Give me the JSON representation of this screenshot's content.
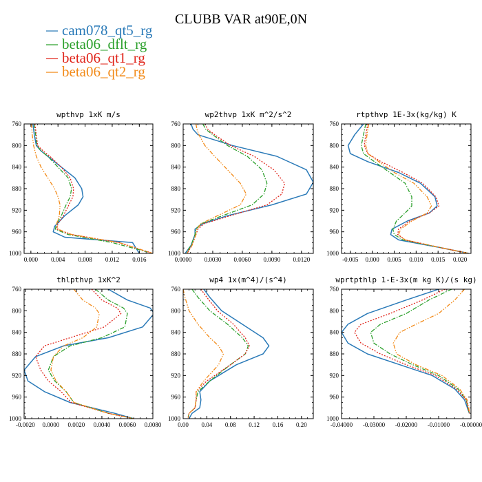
{
  "figure_title": "CLUBB VAR at90E,0N",
  "legend": [
    {
      "label": "cam078_qt5_rg",
      "color": "#2a7ab8",
      "dash": "solid"
    },
    {
      "label": "beta06_dflt_rg",
      "color": "#2ca02c",
      "dash": "dashdot"
    },
    {
      "label": "beta06_qt1_rg",
      "color": "#e0251b",
      "dash": "dot"
    },
    {
      "label": "beta06_qt2_rg",
      "color": "#f28a18",
      "dash": "dashdotdot"
    }
  ],
  "chart_data": [
    {
      "type": "line",
      "title": "wpthvp  1xK m/s",
      "xlim": [
        -0.001,
        0.018
      ],
      "ylim": [
        760,
        1000
      ],
      "y_inverted": true,
      "xticks": [
        0.0,
        0.004,
        0.008,
        0.012,
        0.016
      ],
      "xtick_labels": [
        "0.000",
        "0.004",
        "0.008",
        "0.012",
        "0.016"
      ],
      "yticks": [
        760,
        800,
        840,
        880,
        920,
        960,
        1000
      ],
      "series": [
        {
          "name": "cam078_qt5_rg",
          "x": [
            0.0003,
            0.0005,
            0.0008,
            0.0015,
            0.0025,
            0.0045,
            0.0065,
            0.0075,
            0.0077,
            0.007,
            0.005,
            0.0035,
            0.0033,
            0.005,
            0.015,
            0.016
          ],
          "y": [
            760,
            780,
            800,
            810,
            820,
            840,
            860,
            880,
            895,
            910,
            930,
            950,
            960,
            970,
            980,
            1000
          ]
        },
        {
          "name": "beta06_dflt_rg",
          "x": [
            0.0005,
            0.0007,
            0.0009,
            0.0015,
            0.0025,
            0.004,
            0.0055,
            0.006,
            0.0058,
            0.0052,
            0.0045,
            0.0038,
            0.0036,
            0.0055,
            0.012,
            0.018
          ],
          "y": [
            760,
            780,
            800,
            810,
            820,
            840,
            860,
            880,
            895,
            910,
            930,
            945,
            955,
            965,
            980,
            1000
          ]
        },
        {
          "name": "beta06_qt1_rg",
          "x": [
            0.0006,
            0.0008,
            0.001,
            0.0018,
            0.0028,
            0.0045,
            0.0058,
            0.0063,
            0.0062,
            0.0056,
            0.0048,
            0.004,
            0.0038,
            0.006,
            0.013,
            0.018
          ],
          "y": [
            760,
            780,
            800,
            810,
            820,
            840,
            860,
            880,
            895,
            910,
            930,
            945,
            955,
            965,
            980,
            1000
          ]
        },
        {
          "name": "beta06_qt2_rg",
          "x": [
            0.0001,
            0.0002,
            0.0004,
            0.0006,
            0.0008,
            0.0015,
            0.0025,
            0.0035,
            0.004,
            0.0043,
            0.0042,
            0.0038,
            0.004,
            0.006,
            0.013,
            0.018
          ],
          "y": [
            760,
            780,
            800,
            810,
            820,
            840,
            860,
            880,
            895,
            910,
            930,
            945,
            955,
            965,
            980,
            1000
          ]
        }
      ]
    },
    {
      "type": "line",
      "title": "wp2thvp  1xK m^2/s^2",
      "xlim": [
        0.0,
        0.0132
      ],
      "ylim": [
        760,
        1000
      ],
      "y_inverted": true,
      "xticks": [
        0.0,
        0.003,
        0.006,
        0.009,
        0.012
      ],
      "xtick_labels": [
        "0.0000",
        "0.0030",
        "0.0060",
        "0.0090",
        "0.0120"
      ],
      "yticks": [
        760,
        800,
        840,
        880,
        920,
        960,
        1000
      ],
      "series": [
        {
          "name": "cam078_qt5_rg",
          "x": [
            0.0008,
            0.001,
            0.0015,
            0.005,
            0.0095,
            0.0125,
            0.0132,
            0.0125,
            0.009,
            0.0045,
            0.002,
            0.0012,
            0.0012,
            0.0008,
            0.0002
          ],
          "y": [
            760,
            770,
            780,
            800,
            820,
            845,
            868,
            890,
            910,
            930,
            945,
            955,
            965,
            985,
            1000
          ]
        },
        {
          "name": "beta06_dflt_rg",
          "x": [
            0.002,
            0.0023,
            0.003,
            0.0045,
            0.0065,
            0.008,
            0.0085,
            0.0082,
            0.007,
            0.004,
            0.0018,
            0.0013,
            0.0012,
            0.0008,
            0.0003
          ],
          "y": [
            760,
            770,
            780,
            800,
            820,
            845,
            870,
            890,
            910,
            930,
            945,
            955,
            965,
            985,
            1000
          ]
        },
        {
          "name": "beta06_qt1_rg",
          "x": [
            0.0022,
            0.0025,
            0.0032,
            0.0048,
            0.0072,
            0.0092,
            0.0103,
            0.01,
            0.0085,
            0.0048,
            0.0021,
            0.0015,
            0.0013,
            0.0009,
            0.0004
          ],
          "y": [
            760,
            770,
            780,
            800,
            820,
            845,
            870,
            890,
            910,
            930,
            945,
            955,
            965,
            985,
            1000
          ]
        },
        {
          "name": "beta06_qt2_rg",
          "x": [
            0.0013,
            0.0014,
            0.0016,
            0.0022,
            0.0032,
            0.0045,
            0.0058,
            0.0064,
            0.0058,
            0.0035,
            0.0018,
            0.0014,
            0.0013,
            0.0009,
            0.0004
          ],
          "y": [
            760,
            770,
            780,
            800,
            820,
            845,
            870,
            890,
            910,
            930,
            945,
            955,
            965,
            985,
            1000
          ]
        }
      ]
    },
    {
      "type": "line",
      "title": "rtpthvp  1E-3x(kg/kg) K",
      "xlim": [
        -0.007,
        0.0225
      ],
      "ylim": [
        760,
        1000
      ],
      "y_inverted": true,
      "xticks": [
        -0.005,
        0.0,
        0.005,
        0.01,
        0.015,
        0.02
      ],
      "xtick_labels": [
        "-0.005",
        "0.000",
        "0.005",
        "0.010",
        "0.015",
        "0.020"
      ],
      "yticks": [
        760,
        800,
        840,
        880,
        920,
        960,
        1000
      ],
      "series": [
        {
          "name": "cam078_qt5_rg",
          "x": [
            -0.002,
            -0.004,
            -0.0055,
            -0.005,
            -0.001,
            0.006,
            0.011,
            0.0143,
            0.0148,
            0.013,
            0.008,
            0.0045,
            0.0042,
            0.006,
            0.016,
            0.022
          ],
          "y": [
            760,
            780,
            800,
            815,
            830,
            850,
            870,
            895,
            912,
            925,
            940,
            955,
            965,
            975,
            990,
            1000
          ]
        },
        {
          "name": "beta06_dflt_rg",
          "x": [
            -0.0015,
            -0.002,
            -0.0025,
            -0.002,
            0.0005,
            0.004,
            0.0075,
            0.009,
            0.009,
            0.0075,
            0.0055,
            0.0047,
            0.005,
            0.007,
            0.016,
            0.022
          ],
          "y": [
            760,
            780,
            800,
            815,
            830,
            850,
            870,
            895,
            912,
            925,
            940,
            955,
            965,
            975,
            990,
            1000
          ]
        },
        {
          "name": "beta06_qt1_rg",
          "x": [
            -0.001,
            -0.0015,
            -0.0018,
            -0.001,
            0.002,
            0.007,
            0.0115,
            0.0145,
            0.0152,
            0.013,
            0.0085,
            0.006,
            0.0058,
            0.0075,
            0.016,
            0.022
          ],
          "y": [
            760,
            780,
            800,
            815,
            830,
            850,
            870,
            895,
            912,
            925,
            940,
            955,
            965,
            975,
            990,
            1000
          ]
        },
        {
          "name": "beta06_qt2_rg",
          "x": [
            -0.0008,
            -0.0012,
            -0.0015,
            -0.001,
            0.0015,
            0.005,
            0.0095,
            0.0125,
            0.0135,
            0.0125,
            0.009,
            0.0065,
            0.006,
            0.0075,
            0.016,
            0.022
          ],
          "y": [
            760,
            780,
            800,
            815,
            830,
            850,
            870,
            895,
            912,
            925,
            940,
            955,
            965,
            975,
            990,
            1000
          ]
        }
      ]
    },
    {
      "type": "line",
      "title": "thlpthvp  1xK^2",
      "xlim": [
        -0.0021,
        0.008
      ],
      "ylim": [
        760,
        1000
      ],
      "y_inverted": true,
      "xticks": [
        -0.002,
        0.0,
        0.002,
        0.004,
        0.006,
        0.008
      ],
      "xtick_labels": [
        "-0.0020",
        "0.0000",
        "0.0020",
        "0.0040",
        "0.0060",
        "0.0080"
      ],
      "yticks": [
        760,
        800,
        840,
        880,
        920,
        960,
        1000
      ],
      "series": [
        {
          "name": "cam078_qt5_rg",
          "x": [
            0.0045,
            0.006,
            0.0078,
            0.0081,
            0.0072,
            0.0045,
            0.001,
            -0.0012,
            -0.0021,
            -0.0018,
            -0.0005,
            0.0015,
            0.005,
            0.0065
          ],
          "y": [
            760,
            780,
            795,
            805,
            830,
            850,
            865,
            885,
            910,
            930,
            950,
            970,
            990,
            1000
          ]
        },
        {
          "name": "beta06_dflt_rg",
          "x": [
            0.0035,
            0.0045,
            0.0057,
            0.006,
            0.0058,
            0.004,
            0.0015,
            0.0002,
            -0.0002,
            0.0003,
            0.0012,
            0.0018,
            0.0045,
            0.0065
          ],
          "y": [
            760,
            780,
            795,
            805,
            830,
            850,
            865,
            885,
            910,
            930,
            950,
            970,
            990,
            1000
          ]
        },
        {
          "name": "beta06_qt1_rg",
          "x": [
            0.0032,
            0.004,
            0.0052,
            0.0055,
            0.0042,
            0.0015,
            -0.0005,
            -0.0012,
            -0.0008,
            -0.0002,
            0.0008,
            0.0016,
            0.0045,
            0.0065
          ],
          "y": [
            760,
            780,
            795,
            805,
            830,
            850,
            865,
            885,
            910,
            930,
            950,
            970,
            990,
            1000
          ]
        },
        {
          "name": "beta06_qt2_rg",
          "x": [
            0.0018,
            0.0025,
            0.0035,
            0.0038,
            0.0036,
            0.0025,
            0.001,
            0.0002,
            0.0,
            0.0004,
            0.0012,
            0.0018,
            0.0045,
            0.0065
          ],
          "y": [
            760,
            780,
            795,
            805,
            830,
            850,
            865,
            885,
            910,
            930,
            950,
            970,
            990,
            1000
          ]
        }
      ]
    },
    {
      "type": "line",
      "title": "wp4  1x(m^4)/(s^4)",
      "xlim": [
        0.0,
        0.22
      ],
      "ylim": [
        760,
        1000
      ],
      "y_inverted": true,
      "xticks": [
        0.0,
        0.04,
        0.08,
        0.12,
        0.16,
        0.2
      ],
      "xtick_labels": [
        "0.00",
        "0.04",
        "0.08",
        "0.12",
        "0.16",
        "0.20"
      ],
      "yticks": [
        760,
        800,
        840,
        880,
        920,
        960,
        1000
      ],
      "series": [
        {
          "name": "cam078_qt5_rg",
          "x": [
            0.035,
            0.045,
            0.065,
            0.1,
            0.135,
            0.145,
            0.135,
            0.09,
            0.045,
            0.028,
            0.03,
            0.028,
            0.015,
            0.01
          ],
          "y": [
            760,
            775,
            800,
            825,
            850,
            865,
            880,
            900,
            930,
            950,
            965,
            980,
            990,
            1000
          ]
        },
        {
          "name": "beta06_dflt_rg",
          "x": [
            0.015,
            0.025,
            0.045,
            0.075,
            0.1,
            0.11,
            0.105,
            0.08,
            0.045,
            0.025,
            0.022,
            0.02,
            0.01,
            0.008
          ],
          "y": [
            760,
            775,
            800,
            825,
            850,
            865,
            880,
            900,
            930,
            950,
            965,
            980,
            990,
            1000
          ]
        },
        {
          "name": "beta06_qt1_rg",
          "x": [
            0.03,
            0.04,
            0.058,
            0.085,
            0.105,
            0.112,
            0.105,
            0.08,
            0.04,
            0.022,
            0.022,
            0.02,
            0.01,
            0.008
          ],
          "y": [
            760,
            775,
            800,
            825,
            850,
            865,
            880,
            900,
            930,
            950,
            965,
            980,
            990,
            1000
          ]
        },
        {
          "name": "beta06_qt2_rg",
          "x": [
            0.0,
            0.003,
            0.01,
            0.025,
            0.045,
            0.06,
            0.068,
            0.06,
            0.035,
            0.022,
            0.022,
            0.02,
            0.01,
            0.008
          ],
          "y": [
            760,
            775,
            800,
            825,
            850,
            865,
            880,
            900,
            930,
            950,
            965,
            980,
            990,
            1000
          ]
        }
      ]
    },
    {
      "type": "line",
      "title": "wprtpthlp  1-E-3x(m kg K)/(s kg)",
      "xlim": [
        -0.04,
        0.0
      ],
      "ylim": [
        760,
        1000
      ],
      "y_inverted": true,
      "xticks": [
        -0.04,
        -0.03,
        -0.02,
        -0.01,
        0.0
      ],
      "xtick_labels": [
        "-0.04000",
        "-0.03000",
        "-0.02000",
        "-0.01000",
        "-0.00000"
      ],
      "yticks": [
        760,
        800,
        840,
        880,
        920,
        960,
        1000
      ],
      "series": [
        {
          "name": "cam078_qt5_rg",
          "x": [
            -0.01,
            -0.02,
            -0.032,
            -0.038,
            -0.04,
            -0.038,
            -0.032,
            -0.022,
            -0.012,
            -0.005,
            -0.002,
            -0.0005
          ],
          "y": [
            760,
            780,
            805,
            825,
            840,
            860,
            880,
            900,
            920,
            945,
            965,
            990
          ]
        },
        {
          "name": "beta06_dflt_rg",
          "x": [
            -0.006,
            -0.013,
            -0.02,
            -0.028,
            -0.031,
            -0.03,
            -0.025,
            -0.018,
            -0.01,
            -0.004,
            -0.0015,
            -0.0005
          ],
          "y": [
            760,
            780,
            805,
            825,
            840,
            860,
            880,
            900,
            920,
            945,
            965,
            990
          ]
        },
        {
          "name": "beta06_qt1_rg",
          "x": [
            -0.008,
            -0.015,
            -0.025,
            -0.034,
            -0.036,
            -0.034,
            -0.028,
            -0.02,
            -0.011,
            -0.0045,
            -0.0015,
            -0.0005
          ],
          "y": [
            760,
            780,
            805,
            825,
            840,
            860,
            880,
            900,
            920,
            945,
            965,
            990
          ]
        },
        {
          "name": "beta06_qt2_rg",
          "x": [
            -0.002,
            -0.005,
            -0.01,
            -0.017,
            -0.022,
            -0.024,
            -0.023,
            -0.017,
            -0.009,
            -0.0035,
            -0.0012,
            -0.0004
          ],
          "y": [
            760,
            780,
            805,
            825,
            840,
            860,
            880,
            900,
            920,
            945,
            965,
            990
          ]
        }
      ]
    }
  ]
}
